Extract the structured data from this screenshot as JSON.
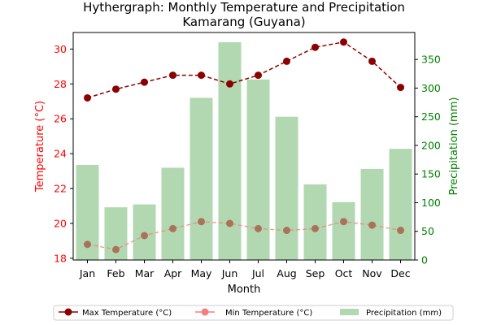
{
  "chart_data": {
    "type": "bar+line",
    "title_line1": "Hythergraph: Monthly Temperature and Precipitation",
    "title_line2": "Kamarang (Guyana)",
    "xlabel": "Month",
    "ylabel_left": "Temperature (°C)",
    "ylabel_right": "Precipitation (mm)",
    "categories": [
      "Jan",
      "Feb",
      "Mar",
      "Apr",
      "May",
      "Jun",
      "Jul",
      "Aug",
      "Sep",
      "Oct",
      "Nov",
      "Dec"
    ],
    "ylim_left": [
      17.9,
      30.95
    ],
    "ylim_right": [
      0,
      397
    ],
    "yticks_left": [
      18,
      20,
      22,
      24,
      26,
      28,
      30
    ],
    "yticks_right": [
      0,
      50,
      100,
      150,
      200,
      250,
      300,
      350
    ],
    "legend_position": "bottom",
    "series": [
      {
        "name": "Max Temperature (°C)",
        "axis": "left",
        "kind": "line",
        "color": "#8b0000",
        "values": [
          27.2,
          27.7,
          28.1,
          28.5,
          28.5,
          28.0,
          28.5,
          29.3,
          30.1,
          30.4,
          29.3,
          27.8
        ]
      },
      {
        "name": "Min Temperature (°C)",
        "axis": "left",
        "kind": "line",
        "color": "#f08080",
        "values": [
          18.8,
          18.5,
          19.3,
          19.7,
          20.1,
          20.0,
          19.7,
          19.6,
          19.7,
          20.1,
          19.9,
          19.6
        ]
      },
      {
        "name": "Precipitation (mm)",
        "axis": "right",
        "kind": "bar",
        "color": "#b2d8b2",
        "values": [
          166,
          92,
          97,
          161,
          283,
          380,
          315,
          250,
          132,
          101,
          159,
          194
        ]
      }
    ],
    "colors": {
      "left_axis": "#ff0000",
      "right_axis": "#008000",
      "axis": "#000000"
    }
  }
}
